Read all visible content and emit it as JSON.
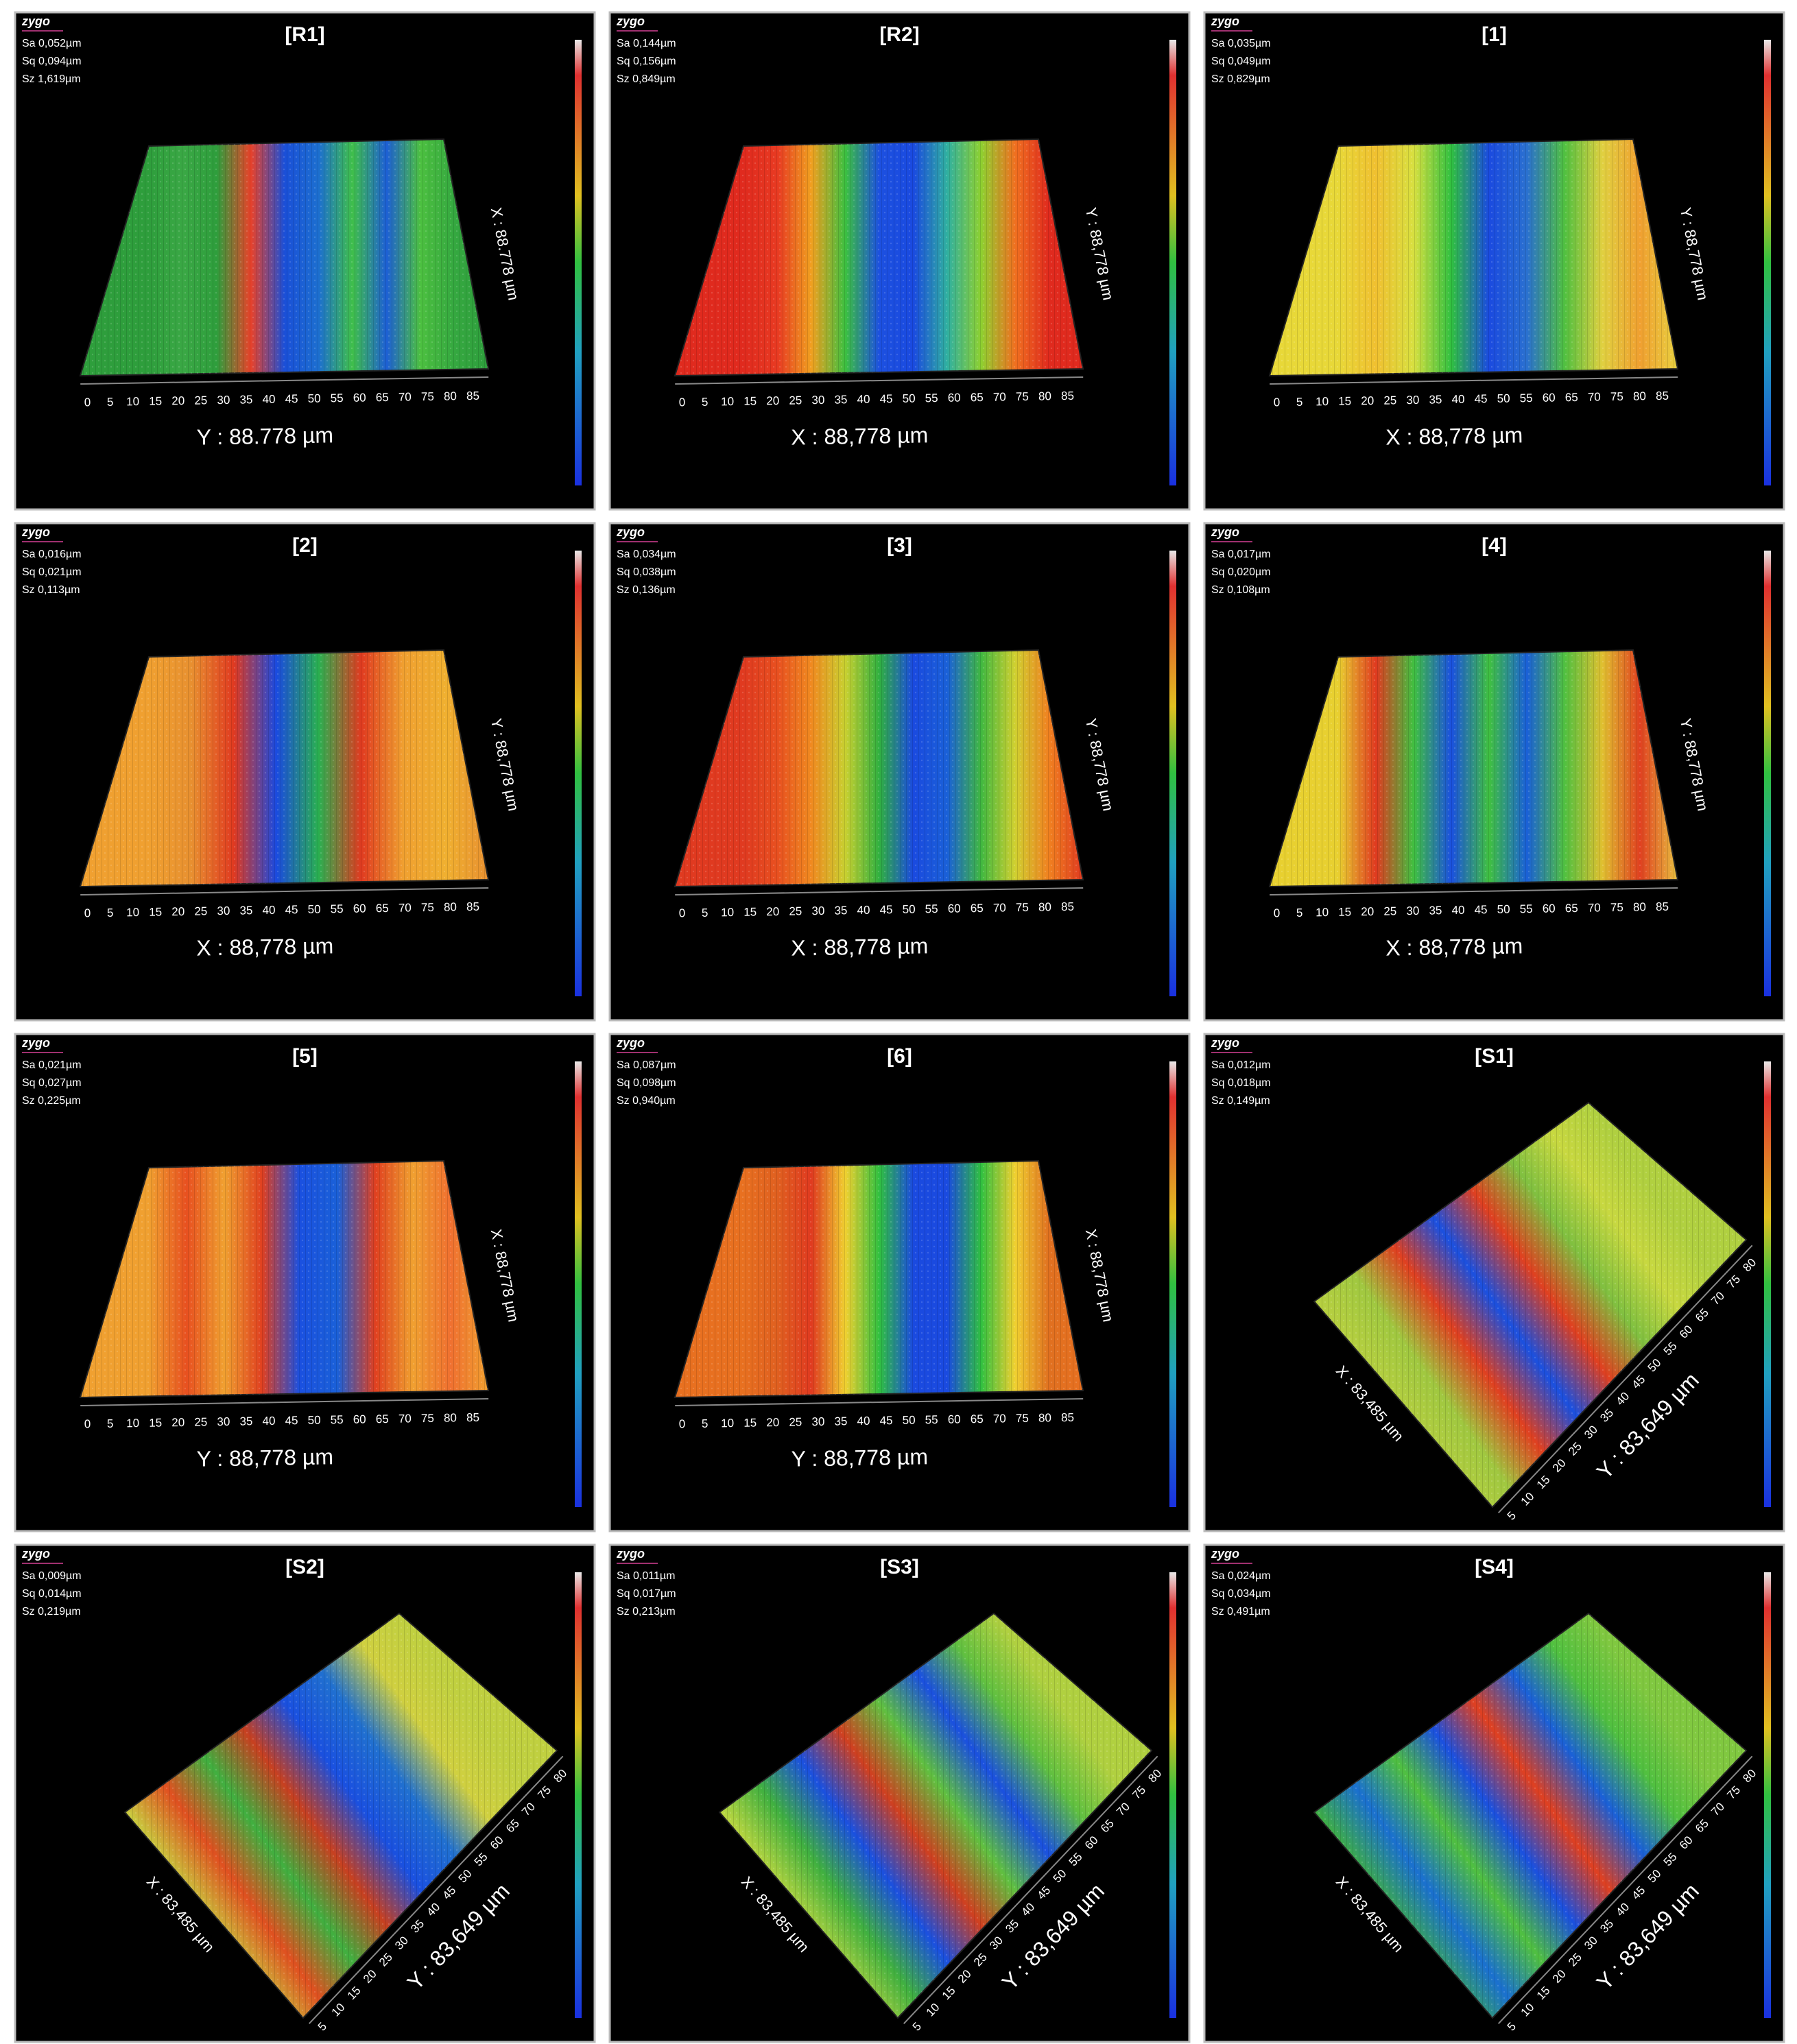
{
  "logo": "zygo",
  "panels": [
    {
      "title": "[R1]",
      "kind": "flat",
      "stats": [
        "Sa 0,052µm",
        "Sq 0,094µm",
        "Sz 1,619µm"
      ],
      "axis_label": "Y : 88.778 µm",
      "side_label": "X : 88.778 µm",
      "ticks": [
        "0",
        "5",
        "10",
        "15",
        "20",
        "25",
        "30",
        "35",
        "40",
        "45",
        "50",
        "55",
        "60",
        "65",
        "70",
        "75",
        "80",
        "85"
      ],
      "bands": [
        "#2e9e3c",
        "#3aa845",
        "#2e9e3c",
        "#e8422a",
        "#1a4fd8",
        "#1c6fd0",
        "#3fbf4a",
        "#1d5fd5",
        "#4cc040",
        "#35a840",
        "#2e9e3c"
      ]
    },
    {
      "title": "[R2]",
      "kind": "flat",
      "stats": [
        "Sa 0,144µm",
        "Sq 0,156µm",
        "Sz 0,849µm"
      ],
      "axis_label": "X : 88,778 µm",
      "side_label": "Y : 88,778 µm",
      "ticks": [
        "0",
        "5",
        "10",
        "15",
        "20",
        "25",
        "30",
        "35",
        "40",
        "45",
        "50",
        "55",
        "60",
        "65",
        "70",
        "75",
        "80",
        "85"
      ],
      "bands": [
        "#e02a1e",
        "#e83a22",
        "#f0a020",
        "#3cc040",
        "#1c50e0",
        "#1a4ae0",
        "#30b0a0",
        "#8ed030",
        "#f07020",
        "#e02a1e",
        "#e02a1e"
      ]
    },
    {
      "title": "[1]",
      "kind": "flat",
      "stats": [
        "Sa 0,035µm",
        "Sq 0,049µm",
        "Sz 0,829µm"
      ],
      "axis_label": "X : 88,778 µm",
      "side_label": "Y : 88,778 µm",
      "ticks": [
        "0",
        "5",
        "10",
        "15",
        "20",
        "25",
        "30",
        "35",
        "40",
        "45",
        "50",
        "55",
        "60",
        "65",
        "70",
        "75",
        "80",
        "85"
      ],
      "bands": [
        "#e8d838",
        "#f0c030",
        "#d8e040",
        "#30c040",
        "#1a4ae0",
        "#2a70d0",
        "#50c040",
        "#e0d040",
        "#f0a030",
        "#e8d040"
      ]
    },
    {
      "title": "[2]",
      "kind": "flat",
      "stats": [
        "Sa 0,016µm",
        "Sq 0,021µm",
        "Sz 0,113µm"
      ],
      "axis_label": "X : 88,778 µm",
      "side_label": "Y : 88,778 µm",
      "ticks": [
        "0",
        "5",
        "10",
        "15",
        "20",
        "25",
        "30",
        "35",
        "40",
        "45",
        "50",
        "55",
        "60",
        "65",
        "70",
        "75",
        "80",
        "85"
      ],
      "bands": [
        "#f0a030",
        "#e89030",
        "#e03a20",
        "#1a4ae0",
        "#2ab050",
        "#e03a20",
        "#f0a030",
        "#f0b030",
        "#e89030"
      ]
    },
    {
      "title": "[3]",
      "kind": "flat",
      "stats": [
        "Sa 0,034µm",
        "Sq 0,038µm",
        "Sz 0,136µm"
      ],
      "axis_label": "X : 88,778 µm",
      "side_label": "Y : 88,778 µm",
      "ticks": [
        "0",
        "5",
        "10",
        "15",
        "20",
        "25",
        "30",
        "35",
        "40",
        "45",
        "50",
        "55",
        "60",
        "65",
        "70",
        "75",
        "80",
        "85"
      ],
      "bands": [
        "#e03a20",
        "#e85020",
        "#f08a20",
        "#c8d030",
        "#30b040",
        "#1a4ae0",
        "#1a60d8",
        "#40b840",
        "#d0d030",
        "#f08020",
        "#e03a20"
      ]
    },
    {
      "title": "[4]",
      "kind": "flat",
      "stats": [
        "Sa 0,017µm",
        "Sq 0,020µm",
        "Sz 0,108µm"
      ],
      "axis_label": "X : 88,778 µm",
      "side_label": "Y : 88,778 µm",
      "ticks": [
        "0",
        "5",
        "10",
        "15",
        "20",
        "25",
        "30",
        "35",
        "40",
        "45",
        "50",
        "55",
        "60",
        "65",
        "70",
        "75",
        "80",
        "85"
      ],
      "bands": [
        "#e8d030",
        "#e03a20",
        "#40c040",
        "#1a50e0",
        "#40c040",
        "#1a60d8",
        "#50c040",
        "#e0c030",
        "#e04020",
        "#e8c040"
      ]
    },
    {
      "title": "[5]",
      "kind": "flat",
      "stats": [
        "Sa 0,021µm",
        "Sq 0,027µm",
        "Sz 0,225µm"
      ],
      "axis_label": "Y : 88,778 µm",
      "side_label": "X : 88,778 µm",
      "ticks": [
        "0",
        "5",
        "10",
        "15",
        "20",
        "25",
        "30",
        "35",
        "40",
        "45",
        "50",
        "55",
        "60",
        "65",
        "70",
        "75",
        "80",
        "85"
      ],
      "bands": [
        "#f0a030",
        "#e85020",
        "#f0a030",
        "#e04020",
        "#1a50e0",
        "#1a60d8",
        "#e04020",
        "#f0a030",
        "#f07030",
        "#f0a030"
      ]
    },
    {
      "title": "[6]",
      "kind": "flat",
      "stats": [
        "Sa 0,087µm",
        "Sq 0,098µm",
        "Sz 0,940µm"
      ],
      "axis_label": "Y : 88,778 µm",
      "side_label": "X : 88,778 µm",
      "ticks": [
        "0",
        "5",
        "10",
        "15",
        "20",
        "25",
        "30",
        "35",
        "40",
        "45",
        "50",
        "55",
        "60",
        "65",
        "70",
        "75",
        "80",
        "85"
      ],
      "bands": [
        "#e87020",
        "#e06020",
        "#e03a20",
        "#f0d030",
        "#30c040",
        "#1a4ae0",
        "#1a4ae0",
        "#30c040",
        "#f0d030",
        "#e07020",
        "#e87020"
      ]
    },
    {
      "title": "[S1]",
      "kind": "tilted",
      "stats": [
        "Sa 0,012µm",
        "Sq 0,018µm",
        "Sz 0,149µm"
      ],
      "axis_label": "Y : 83,649 µm",
      "side_label": "X : 83,485 µm",
      "ticks": [
        "5",
        "10",
        "15",
        "20",
        "25",
        "30",
        "35",
        "40",
        "45",
        "50",
        "55",
        "60",
        "65",
        "70",
        "75",
        "80"
      ],
      "bands": [
        "#b8d040",
        "#a0c840",
        "#e04020",
        "#1a50e0",
        "#e04020",
        "#80c040",
        "#c8d840",
        "#b0d040"
      ]
    },
    {
      "title": "[S2]",
      "kind": "tilted",
      "stats": [
        "Sa 0,009µm",
        "Sq 0,014µm",
        "Sz 0,219µm"
      ],
      "axis_label": "Y : 83,649 µm",
      "side_label": "X : 83,485 µm",
      "ticks": [
        "5",
        "10",
        "15",
        "20",
        "25",
        "30",
        "35",
        "40",
        "45",
        "50",
        "55",
        "60",
        "65",
        "70",
        "75",
        "80"
      ],
      "bands": [
        "#c8d040",
        "#e05020",
        "#40b040",
        "#c84020",
        "#1a50e0",
        "#2070d0",
        "#d0d040",
        "#c0d040"
      ]
    },
    {
      "title": "[S3]",
      "kind": "tilted",
      "stats": [
        "Sa 0,011µm",
        "Sq 0,017µm",
        "Sz 0,213µm"
      ],
      "axis_label": "Y : 83,649 µm",
      "side_label": "X : 83,485 µm",
      "ticks": [
        "5",
        "10",
        "15",
        "20",
        "25",
        "30",
        "35",
        "40",
        "45",
        "50",
        "55",
        "60",
        "65",
        "70",
        "75",
        "80"
      ],
      "bands": [
        "#c0d840",
        "#40b040",
        "#1a50e0",
        "#d04020",
        "#60c040",
        "#1a50e0",
        "#60c040",
        "#b0d040"
      ]
    },
    {
      "title": "[S4]",
      "kind": "tilted",
      "stats": [
        "Sa 0,024µm",
        "Sq 0,034µm",
        "Sz 0,491µm"
      ],
      "axis_label": "Y : 83,649 µm",
      "side_label": "X : 83,485 µm",
      "ticks": [
        "5",
        "10",
        "15",
        "20",
        "25",
        "30",
        "35",
        "40",
        "45",
        "50",
        "55",
        "60",
        "65",
        "70",
        "75",
        "80"
      ],
      "bands": [
        "#40b040",
        "#1a70d0",
        "#50c040",
        "#1a50e0",
        "#e04020",
        "#1a60d8",
        "#50c040",
        "#80c840"
      ]
    }
  ]
}
